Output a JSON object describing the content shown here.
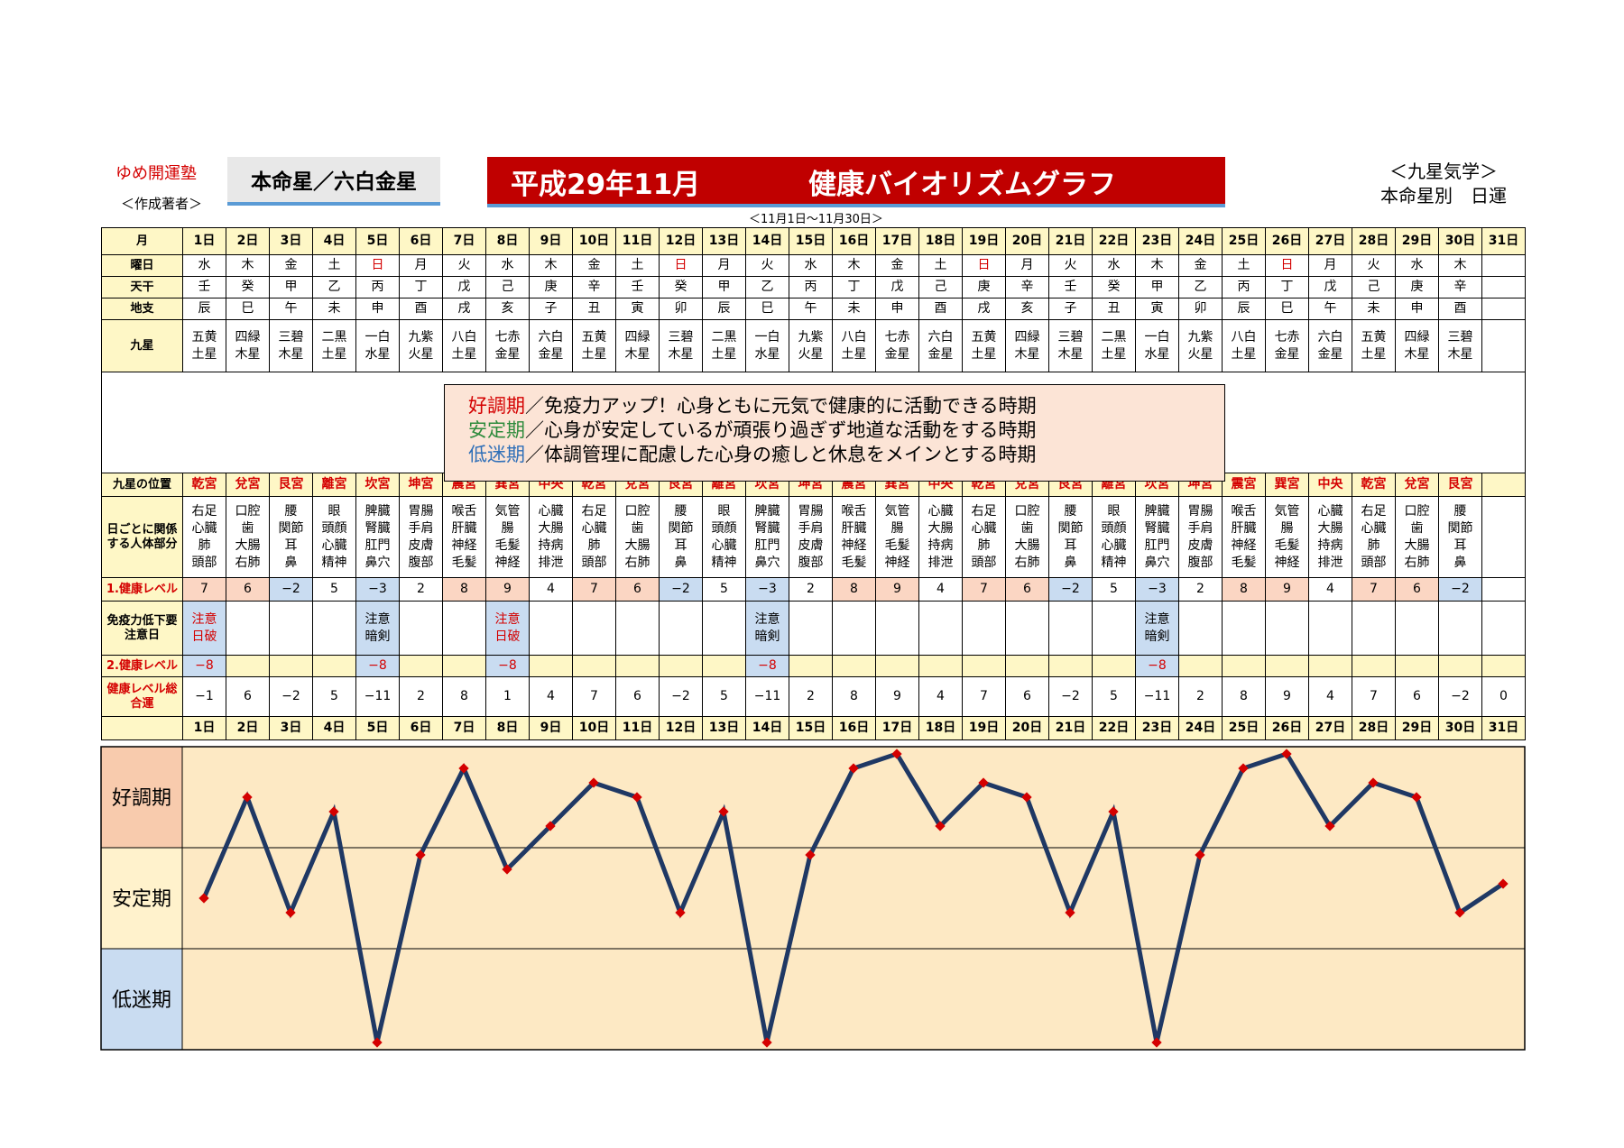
{
  "header": {
    "school": "ゆめ開運塾",
    "author": "＜作成著者＞",
    "honmei": "本命星／六白金星",
    "title_left": "平成29年11月",
    "title_right": "健康バイオリズムグラフ",
    "range": "＜11月1日～11月30日＞",
    "kyusei": "＜九星気学＞",
    "betsu": "本命星別　日運"
  },
  "row_labels": {
    "month": "月",
    "weekday": "曜日",
    "tenkan": "天干",
    "chishi": "地支",
    "kyusei": "九星",
    "palace": "九星の位置",
    "body": "日ごとに関係する人体部分",
    "level1": "1.健康レベル",
    "immune": "免疫力低下要注意日",
    "level2": "2.健康レベル",
    "total": "健康レベル総合運"
  },
  "legend": {
    "good_key": "好調期",
    "good_text": "／免疫力アップ！心身ともに元気で健康的に活動できる時期",
    "stable_key": "安定期",
    "stable_text": "／心身が安定しているが頑張り過ぎず地道な活動をする時期",
    "low_key": "低迷期",
    "low_text": "／体調管理に配慮した心身の癒しと休息をメインとする時期"
  },
  "days": [
    "1日",
    "2日",
    "3日",
    "4日",
    "5日",
    "6日",
    "7日",
    "8日",
    "9日",
    "10日",
    "11日",
    "12日",
    "13日",
    "14日",
    "15日",
    "16日",
    "17日",
    "18日",
    "19日",
    "20日",
    "21日",
    "22日",
    "23日",
    "24日",
    "25日",
    "26日",
    "27日",
    "28日",
    "29日",
    "30日",
    "31日"
  ],
  "weekday": [
    "水",
    "木",
    "金",
    "土",
    "日",
    "月",
    "火",
    "水",
    "木",
    "金",
    "土",
    "日",
    "月",
    "火",
    "水",
    "木",
    "金",
    "土",
    "日",
    "月",
    "火",
    "水",
    "木",
    "金",
    "土",
    "日",
    "月",
    "火",
    "水",
    "木",
    ""
  ],
  "tenkan": [
    "壬",
    "癸",
    "甲",
    "乙",
    "丙",
    "丁",
    "戊",
    "己",
    "庚",
    "辛",
    "壬",
    "癸",
    "甲",
    "乙",
    "丙",
    "丁",
    "戊",
    "己",
    "庚",
    "辛",
    "壬",
    "癸",
    "甲",
    "乙",
    "丙",
    "丁",
    "戊",
    "己",
    "庚",
    "辛",
    ""
  ],
  "chishi": [
    "辰",
    "巳",
    "午",
    "未",
    "申",
    "酉",
    "戌",
    "亥",
    "子",
    "丑",
    "寅",
    "卯",
    "辰",
    "巳",
    "午",
    "未",
    "申",
    "酉",
    "戌",
    "亥",
    "子",
    "丑",
    "寅",
    "卯",
    "辰",
    "巳",
    "午",
    "未",
    "申",
    "酉",
    ""
  ],
  "kyusei": [
    [
      "五黄",
      "土星"
    ],
    [
      "四緑",
      "木星"
    ],
    [
      "三碧",
      "木星"
    ],
    [
      "二黒",
      "土星"
    ],
    [
      "一白",
      "水星"
    ],
    [
      "九紫",
      "火星"
    ],
    [
      "八白",
      "土星"
    ],
    [
      "七赤",
      "金星"
    ],
    [
      "六白",
      "金星"
    ],
    [
      "五黄",
      "土星"
    ],
    [
      "四緑",
      "木星"
    ],
    [
      "三碧",
      "木星"
    ],
    [
      "二黒",
      "土星"
    ],
    [
      "一白",
      "水星"
    ],
    [
      "九紫",
      "火星"
    ],
    [
      "八白",
      "土星"
    ],
    [
      "七赤",
      "金星"
    ],
    [
      "六白",
      "金星"
    ],
    [
      "五黄",
      "土星"
    ],
    [
      "四緑",
      "木星"
    ],
    [
      "三碧",
      "木星"
    ],
    [
      "二黒",
      "土星"
    ],
    [
      "一白",
      "水星"
    ],
    [
      "九紫",
      "火星"
    ],
    [
      "八白",
      "土星"
    ],
    [
      "七赤",
      "金星"
    ],
    [
      "六白",
      "金星"
    ],
    [
      "五黄",
      "土星"
    ],
    [
      "四緑",
      "木星"
    ],
    [
      "三碧",
      "木星"
    ],
    [
      "",
      ""
    ]
  ],
  "palace": [
    "乾宮",
    "兌宮",
    "艮宮",
    "離宮",
    "坎宮",
    "坤宮",
    "震宮",
    "巽宮",
    "中央",
    "乾宮",
    "兌宮",
    "艮宮",
    "離宮",
    "坎宮",
    "坤宮",
    "震宮",
    "巽宮",
    "中央",
    "乾宮",
    "兌宮",
    "艮宮",
    "離宮",
    "坎宮",
    "坤宮",
    "震宮",
    "巽宮",
    "中央",
    "乾宮",
    "兌宮",
    "艮宮",
    ""
  ],
  "body": [
    [
      "右足",
      "心臓",
      "肺",
      "頭部"
    ],
    [
      "口腔",
      "歯",
      "大腸",
      "右肺"
    ],
    [
      "腰",
      "関節",
      "耳",
      "鼻"
    ],
    [
      "眼",
      "頭顔",
      "心臓",
      "精神"
    ],
    [
      "脾臓",
      "腎臓",
      "肛門",
      "鼻穴"
    ],
    [
      "胃腸",
      "手肩",
      "皮膚",
      "腹部"
    ],
    [
      "喉舌",
      "肝臓",
      "神経",
      "毛髪"
    ],
    [
      "気管",
      "腸",
      "毛髪",
      "神経"
    ],
    [
      "心臓",
      "大腸",
      "持病",
      "排泄"
    ],
    [
      "右足",
      "心臓",
      "肺",
      "頭部"
    ],
    [
      "口腔",
      "歯",
      "大腸",
      "右肺"
    ],
    [
      "腰",
      "関節",
      "耳",
      "鼻"
    ],
    [
      "眼",
      "頭顔",
      "心臓",
      "精神"
    ],
    [
      "脾臓",
      "腎臓",
      "肛門",
      "鼻穴"
    ],
    [
      "胃腸",
      "手肩",
      "皮膚",
      "腹部"
    ],
    [
      "喉舌",
      "肝臓",
      "神経",
      "毛髪"
    ],
    [
      "気管",
      "腸",
      "毛髪",
      "神経"
    ],
    [
      "心臓",
      "大腸",
      "持病",
      "排泄"
    ],
    [
      "右足",
      "心臓",
      "肺",
      "頭部"
    ],
    [
      "口腔",
      "歯",
      "大腸",
      "右肺"
    ],
    [
      "腰",
      "関節",
      "耳",
      "鼻"
    ],
    [
      "眼",
      "頭顔",
      "心臓",
      "精神"
    ],
    [
      "脾臓",
      "腎臓",
      "肛門",
      "鼻穴"
    ],
    [
      "胃腸",
      "手肩",
      "皮膚",
      "腹部"
    ],
    [
      "喉舌",
      "肝臓",
      "神経",
      "毛髪"
    ],
    [
      "気管",
      "腸",
      "毛髪",
      "神経"
    ],
    [
      "心臓",
      "大腸",
      "持病",
      "排泄"
    ],
    [
      "右足",
      "心臓",
      "肺",
      "頭部"
    ],
    [
      "口腔",
      "歯",
      "大腸",
      "右肺"
    ],
    [
      "腰",
      "関節",
      "耳",
      "鼻"
    ],
    [
      "",
      "",
      "",
      ""
    ]
  ],
  "level1": [
    "7",
    "6",
    "−2",
    "5",
    "−3",
    "2",
    "8",
    "9",
    "4",
    "7",
    "6",
    "−2",
    "5",
    "−3",
    "2",
    "8",
    "9",
    "4",
    "7",
    "6",
    "−2",
    "5",
    "−3",
    "2",
    "8",
    "9",
    "4",
    "7",
    "6",
    "−2",
    ""
  ],
  "immune": [
    [
      "注意",
      "日破"
    ],
    [
      "",
      ""
    ],
    [
      "",
      ""
    ],
    [
      "",
      ""
    ],
    [
      "注意",
      "暗剣"
    ],
    [
      "",
      ""
    ],
    [
      "",
      ""
    ],
    [
      "注意",
      "日破"
    ],
    [
      "",
      ""
    ],
    [
      "",
      ""
    ],
    [
      "",
      ""
    ],
    [
      "",
      ""
    ],
    [
      "",
      ""
    ],
    [
      "注意",
      "暗剣"
    ],
    [
      "",
      ""
    ],
    [
      "",
      ""
    ],
    [
      "",
      ""
    ],
    [
      "",
      ""
    ],
    [
      "",
      ""
    ],
    [
      "",
      ""
    ],
    [
      "",
      ""
    ],
    [
      "",
      ""
    ],
    [
      "注意",
      "暗剣"
    ],
    [
      "",
      ""
    ],
    [
      "",
      ""
    ],
    [
      "",
      ""
    ],
    [
      "",
      ""
    ],
    [
      "",
      ""
    ],
    [
      "",
      ""
    ],
    [
      "",
      ""
    ],
    [
      "",
      ""
    ]
  ],
  "level2": [
    "−8",
    "",
    "",
    "",
    "−8",
    "",
    "",
    "−8",
    "",
    "",
    "",
    "",
    "",
    "−8",
    "",
    "",
    "",
    "",
    "",
    "",
    "",
    "",
    "−8",
    "",
    "",
    "",
    "",
    "",
    "",
    "",
    ""
  ],
  "total": [
    "−1",
    "6",
    "−2",
    "5",
    "−11",
    "2",
    "8",
    "1",
    "4",
    "7",
    "6",
    "−2",
    "5",
    "−11",
    "2",
    "8",
    "9",
    "4",
    "7",
    "6",
    "−2",
    "5",
    "−11",
    "2",
    "8",
    "9",
    "4",
    "7",
    "6",
    "−2",
    "0"
  ],
  "chart_data": {
    "type": "line",
    "title": "健康バイオリズムグラフ",
    "x": [
      "1日",
      "2日",
      "3日",
      "4日",
      "5日",
      "6日",
      "7日",
      "8日",
      "9日",
      "10日",
      "11日",
      "12日",
      "13日",
      "14日",
      "15日",
      "16日",
      "17日",
      "18日",
      "19日",
      "20日",
      "21日",
      "22日",
      "23日",
      "24日",
      "25日",
      "26日",
      "27日",
      "28日",
      "29日",
      "30日",
      "31日"
    ],
    "series": [
      {
        "name": "",
        "values": [
          -1,
          6,
          -2,
          5,
          -11,
          2,
          8,
          1,
          4,
          7,
          6,
          -2,
          5,
          -11,
          2,
          8,
          9,
          4,
          7,
          6,
          -2,
          5,
          -11,
          2,
          8,
          9,
          4,
          7,
          6,
          -2,
          0
        ]
      }
    ],
    "bands": [
      {
        "label": "好調期",
        "color": "#f8cbad"
      },
      {
        "label": "安定期",
        "color": "#fff2cc"
      },
      {
        "label": "低迷期",
        "color": "#c9dcf1"
      }
    ],
    "ylim": [
      -11,
      9
    ],
    "line_color": "#1f3864",
    "marker_color": "#d40000",
    "plot_color": "#fde9c4"
  }
}
